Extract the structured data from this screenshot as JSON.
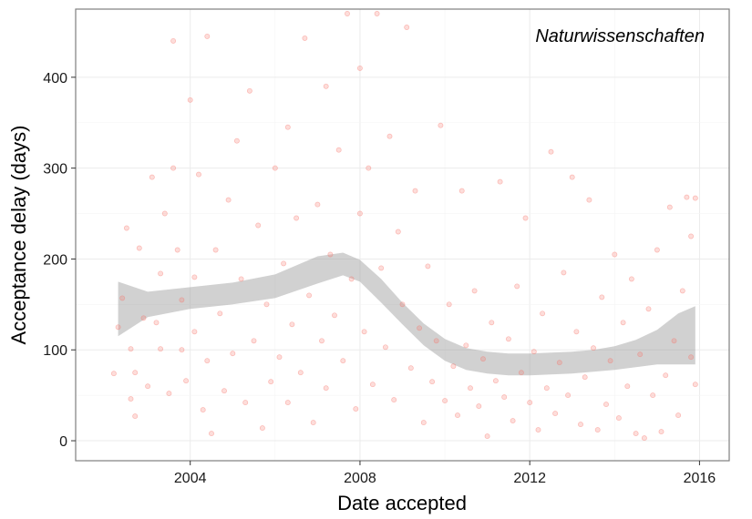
{
  "chart_data": {
    "type": "scatter",
    "annotation": "Naturwissenschaften",
    "xlabel": "Date accepted",
    "ylabel": "Acceptance delay (days)",
    "xlim": [
      2001.3,
      2016.7
    ],
    "ylim": [
      -22,
      475
    ],
    "x_ticks": [
      2004,
      2008,
      2012,
      2016
    ],
    "x_tick_labels": [
      "2004",
      "2008",
      "2012",
      "2016"
    ],
    "y_ticks": [
      0,
      100,
      200,
      300,
      400
    ],
    "y_tick_labels": [
      "0",
      "100",
      "200",
      "300",
      "400"
    ],
    "grid": true,
    "point_color": "#F8766D",
    "point_alpha": 0.25,
    "smooth": {
      "method": "loess",
      "x": [
        2002.3,
        2003.0,
        2004.0,
        2005.0,
        2006.0,
        2007.0,
        2007.6,
        2008.0,
        2008.5,
        2009.0,
        2009.5,
        2010.0,
        2010.5,
        2011.0,
        2011.5,
        2012.0,
        2012.5,
        2013.0,
        2013.5,
        2014.0,
        2014.5,
        2015.0,
        2015.5,
        2015.9
      ],
      "fit": [
        145,
        150,
        157,
        162,
        170,
        188,
        194,
        187,
        165,
        140,
        117,
        100,
        90,
        86,
        84,
        84,
        85,
        86,
        88,
        91,
        96,
        103,
        113,
        123
      ],
      "ymin": [
        115,
        136,
        145,
        150,
        157,
        173,
        182,
        175,
        152,
        128,
        105,
        88,
        78,
        74,
        72,
        72,
        73,
        74,
        76,
        78,
        81,
        84,
        84,
        84
      ],
      "ymax": [
        175,
        164,
        169,
        174,
        183,
        203,
        207,
        199,
        178,
        152,
        129,
        112,
        102,
        98,
        96,
        96,
        97,
        98,
        100,
        104,
        111,
        122,
        140,
        148
      ],
      "band_color": "#999999"
    },
    "points": [
      {
        "x": 2002.2,
        "y": 74
      },
      {
        "x": 2002.3,
        "y": 125
      },
      {
        "x": 2002.4,
        "y": 157
      },
      {
        "x": 2002.5,
        "y": 234
      },
      {
        "x": 2002.6,
        "y": 46
      },
      {
        "x": 2002.6,
        "y": 101
      },
      {
        "x": 2002.7,
        "y": 27
      },
      {
        "x": 2002.7,
        "y": 75
      },
      {
        "x": 2002.8,
        "y": 212
      },
      {
        "x": 2002.9,
        "y": 135
      },
      {
        "x": 2003.0,
        "y": 60
      },
      {
        "x": 2003.1,
        "y": 290
      },
      {
        "x": 2003.2,
        "y": 130
      },
      {
        "x": 2003.3,
        "y": 101
      },
      {
        "x": 2003.3,
        "y": 184
      },
      {
        "x": 2003.4,
        "y": 250
      },
      {
        "x": 2003.5,
        "y": 52
      },
      {
        "x": 2003.6,
        "y": 440
      },
      {
        "x": 2003.6,
        "y": 300
      },
      {
        "x": 2003.7,
        "y": 210
      },
      {
        "x": 2003.8,
        "y": 100
      },
      {
        "x": 2003.8,
        "y": 155
      },
      {
        "x": 2003.9,
        "y": 66
      },
      {
        "x": 2004.0,
        "y": 375
      },
      {
        "x": 2004.1,
        "y": 120
      },
      {
        "x": 2004.1,
        "y": 180
      },
      {
        "x": 2004.2,
        "y": 293
      },
      {
        "x": 2004.3,
        "y": 34
      },
      {
        "x": 2004.4,
        "y": 445
      },
      {
        "x": 2004.4,
        "y": 88
      },
      {
        "x": 2004.5,
        "y": 8
      },
      {
        "x": 2004.6,
        "y": 210
      },
      {
        "x": 2004.7,
        "y": 140
      },
      {
        "x": 2004.8,
        "y": 55
      },
      {
        "x": 2004.9,
        "y": 265
      },
      {
        "x": 2005.0,
        "y": 96
      },
      {
        "x": 2005.1,
        "y": 330
      },
      {
        "x": 2005.2,
        "y": 178
      },
      {
        "x": 2005.3,
        "y": 42
      },
      {
        "x": 2005.4,
        "y": 385
      },
      {
        "x": 2005.5,
        "y": 110
      },
      {
        "x": 2005.6,
        "y": 237
      },
      {
        "x": 2005.7,
        "y": 14
      },
      {
        "x": 2005.8,
        "y": 150
      },
      {
        "x": 2005.9,
        "y": 65
      },
      {
        "x": 2006.0,
        "y": 300
      },
      {
        "x": 2006.1,
        "y": 92
      },
      {
        "x": 2006.2,
        "y": 195
      },
      {
        "x": 2006.3,
        "y": 345
      },
      {
        "x": 2006.3,
        "y": 42
      },
      {
        "x": 2006.4,
        "y": 128
      },
      {
        "x": 2006.5,
        "y": 245
      },
      {
        "x": 2006.6,
        "y": 75
      },
      {
        "x": 2006.7,
        "y": 443
      },
      {
        "x": 2006.8,
        "y": 160
      },
      {
        "x": 2006.9,
        "y": 20
      },
      {
        "x": 2007.0,
        "y": 260
      },
      {
        "x": 2007.1,
        "y": 110
      },
      {
        "x": 2007.2,
        "y": 390
      },
      {
        "x": 2007.2,
        "y": 58
      },
      {
        "x": 2007.3,
        "y": 205
      },
      {
        "x": 2007.4,
        "y": 138
      },
      {
        "x": 2007.5,
        "y": 320
      },
      {
        "x": 2007.6,
        "y": 88
      },
      {
        "x": 2007.7,
        "y": 470
      },
      {
        "x": 2007.8,
        "y": 178
      },
      {
        "x": 2007.9,
        "y": 35
      },
      {
        "x": 2008.0,
        "y": 410
      },
      {
        "x": 2008.0,
        "y": 250
      },
      {
        "x": 2008.1,
        "y": 120
      },
      {
        "x": 2008.2,
        "y": 300
      },
      {
        "x": 2008.3,
        "y": 62
      },
      {
        "x": 2008.4,
        "y": 470
      },
      {
        "x": 2008.5,
        "y": 190
      },
      {
        "x": 2008.6,
        "y": 103
      },
      {
        "x": 2008.7,
        "y": 335
      },
      {
        "x": 2008.8,
        "y": 45
      },
      {
        "x": 2008.9,
        "y": 230
      },
      {
        "x": 2009.0,
        "y": 150
      },
      {
        "x": 2009.1,
        "y": 455
      },
      {
        "x": 2009.2,
        "y": 80
      },
      {
        "x": 2009.3,
        "y": 275
      },
      {
        "x": 2009.4,
        "y": 124
      },
      {
        "x": 2009.5,
        "y": 20
      },
      {
        "x": 2009.6,
        "y": 192
      },
      {
        "x": 2009.7,
        "y": 65
      },
      {
        "x": 2009.8,
        "y": 110
      },
      {
        "x": 2009.9,
        "y": 347
      },
      {
        "x": 2010.0,
        "y": 44
      },
      {
        "x": 2010.1,
        "y": 150
      },
      {
        "x": 2010.2,
        "y": 82
      },
      {
        "x": 2010.3,
        "y": 28
      },
      {
        "x": 2010.4,
        "y": 275
      },
      {
        "x": 2010.5,
        "y": 105
      },
      {
        "x": 2010.6,
        "y": 58
      },
      {
        "x": 2010.7,
        "y": 165
      },
      {
        "x": 2010.8,
        "y": 38
      },
      {
        "x": 2010.9,
        "y": 90
      },
      {
        "x": 2011.0,
        "y": 5
      },
      {
        "x": 2011.1,
        "y": 130
      },
      {
        "x": 2011.2,
        "y": 66
      },
      {
        "x": 2011.3,
        "y": 285
      },
      {
        "x": 2011.4,
        "y": 48
      },
      {
        "x": 2011.5,
        "y": 112
      },
      {
        "x": 2011.6,
        "y": 22
      },
      {
        "x": 2011.7,
        "y": 170
      },
      {
        "x": 2011.8,
        "y": 75
      },
      {
        "x": 2011.9,
        "y": 245
      },
      {
        "x": 2012.0,
        "y": 42
      },
      {
        "x": 2012.1,
        "y": 98
      },
      {
        "x": 2012.2,
        "y": 12
      },
      {
        "x": 2012.3,
        "y": 140
      },
      {
        "x": 2012.4,
        "y": 58
      },
      {
        "x": 2012.5,
        "y": 318
      },
      {
        "x": 2012.6,
        "y": 30
      },
      {
        "x": 2012.7,
        "y": 86
      },
      {
        "x": 2012.8,
        "y": 185
      },
      {
        "x": 2012.9,
        "y": 50
      },
      {
        "x": 2013.0,
        "y": 290
      },
      {
        "x": 2013.1,
        "y": 120
      },
      {
        "x": 2013.2,
        "y": 18
      },
      {
        "x": 2013.3,
        "y": 70
      },
      {
        "x": 2013.4,
        "y": 265
      },
      {
        "x": 2013.5,
        "y": 102
      },
      {
        "x": 2013.6,
        "y": 12
      },
      {
        "x": 2013.7,
        "y": 158
      },
      {
        "x": 2013.8,
        "y": 40
      },
      {
        "x": 2013.9,
        "y": 88
      },
      {
        "x": 2014.0,
        "y": 205
      },
      {
        "x": 2014.1,
        "y": 25
      },
      {
        "x": 2014.2,
        "y": 130
      },
      {
        "x": 2014.3,
        "y": 60
      },
      {
        "x": 2014.4,
        "y": 178
      },
      {
        "x": 2014.5,
        "y": 8
      },
      {
        "x": 2014.6,
        "y": 95
      },
      {
        "x": 2014.7,
        "y": 3
      },
      {
        "x": 2014.8,
        "y": 145
      },
      {
        "x": 2014.9,
        "y": 50
      },
      {
        "x": 2015.0,
        "y": 210
      },
      {
        "x": 2015.1,
        "y": 10
      },
      {
        "x": 2015.2,
        "y": 72
      },
      {
        "x": 2015.3,
        "y": 257
      },
      {
        "x": 2015.4,
        "y": 110
      },
      {
        "x": 2015.5,
        "y": 28
      },
      {
        "x": 2015.6,
        "y": 165
      },
      {
        "x": 2015.7,
        "y": 268
      },
      {
        "x": 2015.8,
        "y": 92
      },
      {
        "x": 2015.8,
        "y": 225
      },
      {
        "x": 2015.9,
        "y": 62
      },
      {
        "x": 2015.9,
        "y": 267
      }
    ]
  }
}
